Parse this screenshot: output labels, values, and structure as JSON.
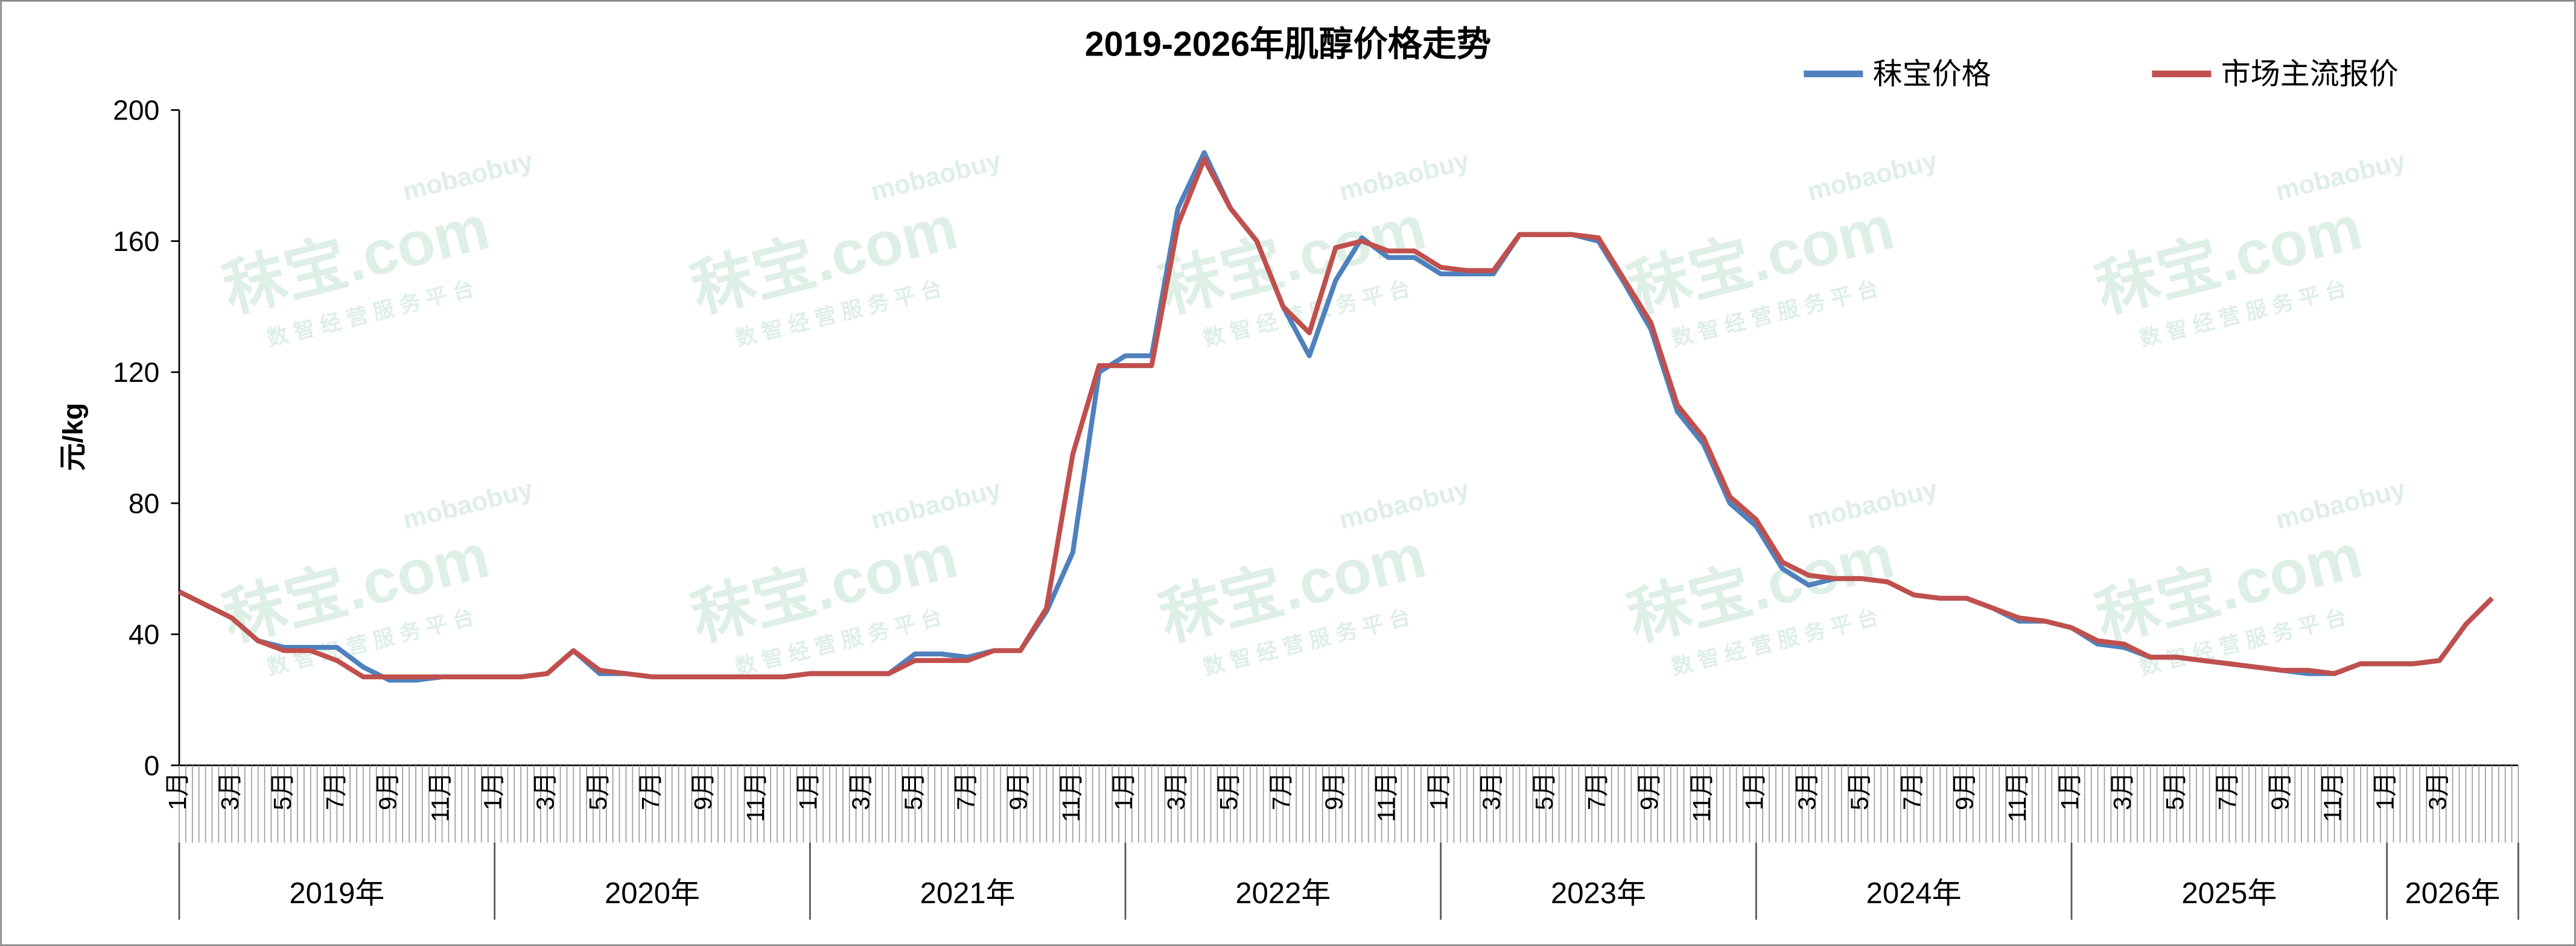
{
  "chart_data": {
    "type": "line",
    "title": "2019-2026年肌醇价格走势",
    "y_label": "元/kg",
    "watermark": {
      "brand": "秣宝.com",
      "domain": "mobaobuy",
      "slogan": "数 智 经 营 服 务 平 台"
    },
    "categories": [
      "1月",
      null,
      "3月",
      null,
      "5月",
      null,
      "7月",
      null,
      "9月",
      null,
      "11月",
      null,
      "1月",
      null,
      "3月",
      null,
      "5月",
      null,
      "7月",
      null,
      "9月",
      null,
      "11月",
      null,
      "1月",
      null,
      "3月",
      null,
      "5月",
      null,
      "7月",
      null,
      "9月",
      null,
      "11月",
      null,
      "1月",
      null,
      "3月",
      null,
      "5月",
      null,
      "7月",
      null,
      "9月",
      null,
      "11月",
      null,
      "1月",
      null,
      "3月",
      null,
      "5月",
      null,
      "7月",
      null,
      "9月",
      null,
      "11月",
      null,
      "1月",
      null,
      "3月",
      null,
      "5月",
      null,
      "7月",
      null,
      "9月",
      null,
      "11月",
      null,
      "1月",
      null,
      "3月",
      null,
      "5月",
      null,
      "7月",
      null,
      "9月",
      null,
      "11月",
      null,
      "1月",
      null,
      "3月",
      null,
      null
    ],
    "year_labels": [
      "2019年",
      "2020年",
      "2021年",
      "2022年",
      "2023年",
      "2024年",
      "2025年",
      "2026年"
    ],
    "series": [
      {
        "name": "秣宝价格",
        "color": "#4f81bd",
        "values": [
          53,
          49,
          45,
          38,
          36,
          36,
          36,
          30,
          26,
          26,
          27,
          27,
          27,
          27,
          28,
          35,
          28,
          28,
          27,
          27,
          27,
          27,
          27,
          27,
          28,
          28,
          28,
          28,
          34,
          34,
          33,
          35,
          35,
          47,
          65,
          120,
          125,
          125,
          170,
          187,
          170,
          160,
          140,
          125,
          148,
          161,
          155,
          155,
          150,
          150,
          150,
          162,
          162,
          162,
          160,
          147,
          133,
          108,
          98,
          80,
          73,
          60,
          55,
          57,
          57,
          56,
          52,
          51,
          51,
          48,
          44,
          44,
          42,
          37,
          36,
          33,
          33,
          32,
          31,
          30,
          29,
          28,
          28,
          31,
          31,
          31,
          32,
          43,
          51
        ]
      },
      {
        "name": "市场主流报价",
        "color": "#c0504d",
        "values": [
          53,
          49,
          45,
          38,
          35,
          35,
          32,
          27,
          27,
          27,
          27,
          27,
          27,
          27,
          28,
          35,
          29,
          28,
          27,
          27,
          27,
          27,
          27,
          27,
          28,
          28,
          28,
          28,
          32,
          32,
          32,
          35,
          35,
          48,
          95,
          122,
          122,
          122,
          165,
          185,
          170,
          160,
          140,
          132,
          158,
          160,
          157,
          157,
          152,
          151,
          151,
          162,
          162,
          162,
          161,
          148,
          135,
          110,
          100,
          82,
          75,
          62,
          58,
          57,
          57,
          56,
          52,
          51,
          51,
          48,
          45,
          44,
          42,
          38,
          37,
          33,
          33,
          32,
          31,
          30,
          29,
          29,
          28,
          31,
          31,
          31,
          32,
          43,
          51
        ]
      }
    ],
    "ylim": [
      0,
      200
    ],
    "yticks": [
      0,
      40,
      80,
      120,
      160,
      200
    ],
    "legend": "top-right"
  }
}
